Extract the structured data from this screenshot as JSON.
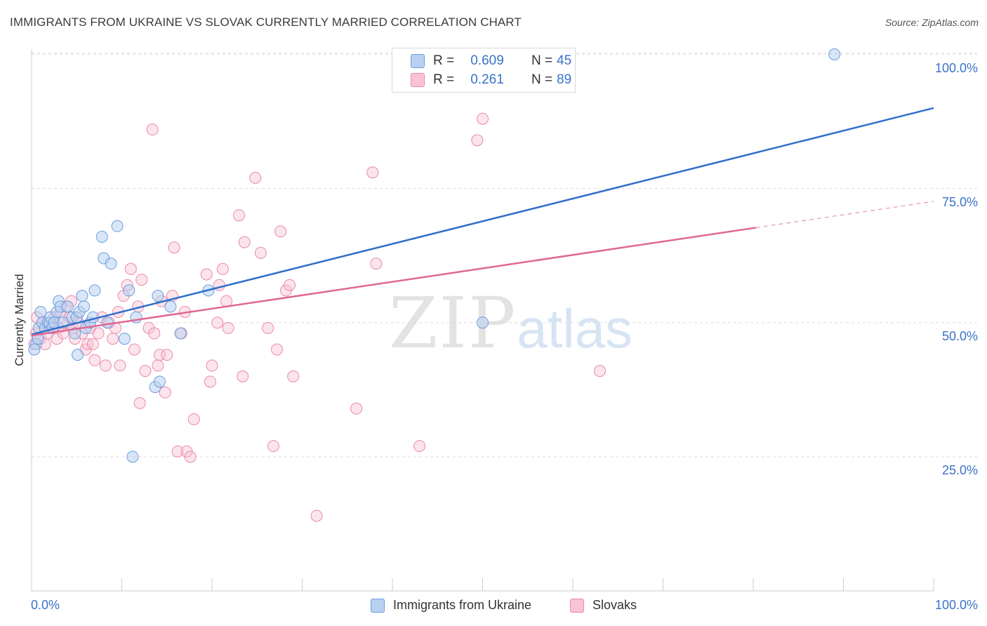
{
  "header": {
    "title": "IMMIGRANTS FROM UKRAINE VS SLOVAK CURRENTLY MARRIED CORRELATION CHART",
    "source": "Source: ZipAtlas.com"
  },
  "watermark": {
    "zip": "ZIP",
    "atlas": "atlas"
  },
  "legend": {
    "r_label": "R =",
    "n_label": "N =",
    "series": [
      {
        "name": "Immigrants from Ukraine",
        "r": "0.609",
        "n": "45",
        "fill": "#b9d1f0",
        "stroke": "#6a9ee0"
      },
      {
        "name": "Slovaks",
        "r": "0.261",
        "n": "89",
        "fill": "#f8c4d4",
        "stroke": "#e98aa8"
      }
    ]
  },
  "colors": {
    "blue_line": "#2e6fcb",
    "pink_line": "#e06792",
    "tick_text": "#3a73c9",
    "grid": "#dddddd"
  },
  "chart_data": {
    "type": "scatter",
    "title": "IMMIGRANTS FROM UKRAINE VS SLOVAK CURRENTLY MARRIED CORRELATION CHART",
    "xlabel": "",
    "ylabel": "Currently Married",
    "xlim": [
      0,
      100
    ],
    "ylim": [
      0,
      103
    ],
    "x_tick_labels": [
      "0.0%",
      "100.0%"
    ],
    "y_ticks": [
      25,
      50,
      75,
      100
    ],
    "y_tick_labels": [
      "25.0%",
      "50.0%",
      "75.0%",
      "100.0%"
    ],
    "grid": true,
    "legend_position": "top-center",
    "series": [
      {
        "name": "Immigrants from Ukraine",
        "r": 0.609,
        "n": 45,
        "points": [
          [
            0.5,
            46
          ],
          [
            0.7,
            47
          ],
          [
            0.8,
            49
          ],
          [
            1.0,
            52
          ],
          [
            1.2,
            50
          ],
          [
            1.5,
            49
          ],
          [
            1.8,
            50
          ],
          [
            2.0,
            50
          ],
          [
            2.1,
            51
          ],
          [
            2.3,
            49
          ],
          [
            2.5,
            50
          ],
          [
            2.8,
            52
          ],
          [
            3.0,
            54
          ],
          [
            3.2,
            53
          ],
          [
            3.5,
            50
          ],
          [
            4.0,
            53
          ],
          [
            4.5,
            51
          ],
          [
            4.8,
            48
          ],
          [
            5.0,
            51
          ],
          [
            5.1,
            44
          ],
          [
            5.3,
            52
          ],
          [
            5.6,
            55
          ],
          [
            5.8,
            53
          ],
          [
            6.0,
            49
          ],
          [
            6.5,
            50
          ],
          [
            6.8,
            51
          ],
          [
            7.0,
            56
          ],
          [
            7.8,
            66
          ],
          [
            8.0,
            62
          ],
          [
            8.4,
            50
          ],
          [
            8.8,
            61
          ],
          [
            9.5,
            68
          ],
          [
            10.3,
            47
          ],
          [
            10.8,
            56
          ],
          [
            11.2,
            25
          ],
          [
            11.6,
            51
          ],
          [
            13.7,
            38
          ],
          [
            14.0,
            55
          ],
          [
            14.2,
            39
          ],
          [
            15.4,
            53
          ],
          [
            16.5,
            48
          ],
          [
            19.6,
            56
          ],
          [
            50.0,
            50
          ],
          [
            89.0,
            100
          ],
          [
            0.3,
            45
          ]
        ],
        "trend": {
          "x": [
            0,
            100
          ],
          "y": [
            47.8,
            90
          ]
        }
      },
      {
        "name": "Slovaks",
        "r": 0.261,
        "n": 89,
        "points": [
          [
            0.3,
            46
          ],
          [
            0.5,
            48
          ],
          [
            0.6,
            51
          ],
          [
            0.8,
            49
          ],
          [
            1.0,
            47
          ],
          [
            1.2,
            50
          ],
          [
            1.5,
            46
          ],
          [
            1.8,
            48
          ],
          [
            2.0,
            49
          ],
          [
            2.2,
            50
          ],
          [
            2.5,
            51
          ],
          [
            2.8,
            47
          ],
          [
            3.0,
            49
          ],
          [
            3.2,
            52
          ],
          [
            3.5,
            48
          ],
          [
            3.8,
            53
          ],
          [
            4.0,
            50
          ],
          [
            4.2,
            51
          ],
          [
            4.4,
            54
          ],
          [
            4.6,
            49
          ],
          [
            4.8,
            47
          ],
          [
            5.0,
            51
          ],
          [
            5.2,
            50
          ],
          [
            5.6,
            48
          ],
          [
            6.0,
            45
          ],
          [
            6.2,
            46
          ],
          [
            6.5,
            49
          ],
          [
            6.8,
            46
          ],
          [
            7.0,
            43
          ],
          [
            7.4,
            48
          ],
          [
            7.8,
            51
          ],
          [
            8.2,
            42
          ],
          [
            8.6,
            50
          ],
          [
            9.0,
            47
          ],
          [
            9.3,
            49
          ],
          [
            9.6,
            52
          ],
          [
            9.8,
            42
          ],
          [
            10.2,
            55
          ],
          [
            10.6,
            57
          ],
          [
            11.0,
            60
          ],
          [
            11.4,
            45
          ],
          [
            11.8,
            53
          ],
          [
            12.0,
            35
          ],
          [
            12.2,
            58
          ],
          [
            12.6,
            41
          ],
          [
            13.0,
            49
          ],
          [
            13.4,
            86
          ],
          [
            13.6,
            48
          ],
          [
            14.0,
            42
          ],
          [
            14.2,
            44
          ],
          [
            14.4,
            54
          ],
          [
            14.8,
            37
          ],
          [
            15.0,
            44
          ],
          [
            15.6,
            55
          ],
          [
            15.8,
            64
          ],
          [
            16.2,
            26
          ],
          [
            16.6,
            48
          ],
          [
            17.0,
            52
          ],
          [
            17.2,
            26
          ],
          [
            17.6,
            25
          ],
          [
            18.0,
            32
          ],
          [
            19.4,
            59
          ],
          [
            19.8,
            39
          ],
          [
            20.0,
            42
          ],
          [
            20.6,
            50
          ],
          [
            20.8,
            57
          ],
          [
            21.2,
            60
          ],
          [
            21.6,
            54
          ],
          [
            21.8,
            49
          ],
          [
            23.0,
            70
          ],
          [
            23.4,
            40
          ],
          [
            23.6,
            65
          ],
          [
            24.8,
            77
          ],
          [
            25.4,
            63
          ],
          [
            26.2,
            49
          ],
          [
            26.8,
            27
          ],
          [
            27.2,
            45
          ],
          [
            27.6,
            67
          ],
          [
            28.2,
            56
          ],
          [
            28.6,
            57
          ],
          [
            29.0,
            40
          ],
          [
            31.6,
            14
          ],
          [
            36.0,
            34
          ],
          [
            37.8,
            78
          ],
          [
            38.2,
            61
          ],
          [
            43.0,
            27
          ],
          [
            49.4,
            84
          ],
          [
            50.0,
            88
          ],
          [
            63.0,
            41
          ]
        ],
        "trend": {
          "x": [
            0,
            80.3
          ],
          "y": [
            47.6,
            67.7
          ]
        },
        "trend_dashed": {
          "x": [
            80.3,
            100
          ],
          "y": [
            67.7,
            72.6
          ]
        }
      }
    ]
  },
  "axes": {
    "y_title": "Currently Married",
    "x_left": "0.0%",
    "x_right": "100.0%",
    "y_labels": [
      "100.0%",
      "75.0%",
      "50.0%",
      "25.0%"
    ]
  }
}
